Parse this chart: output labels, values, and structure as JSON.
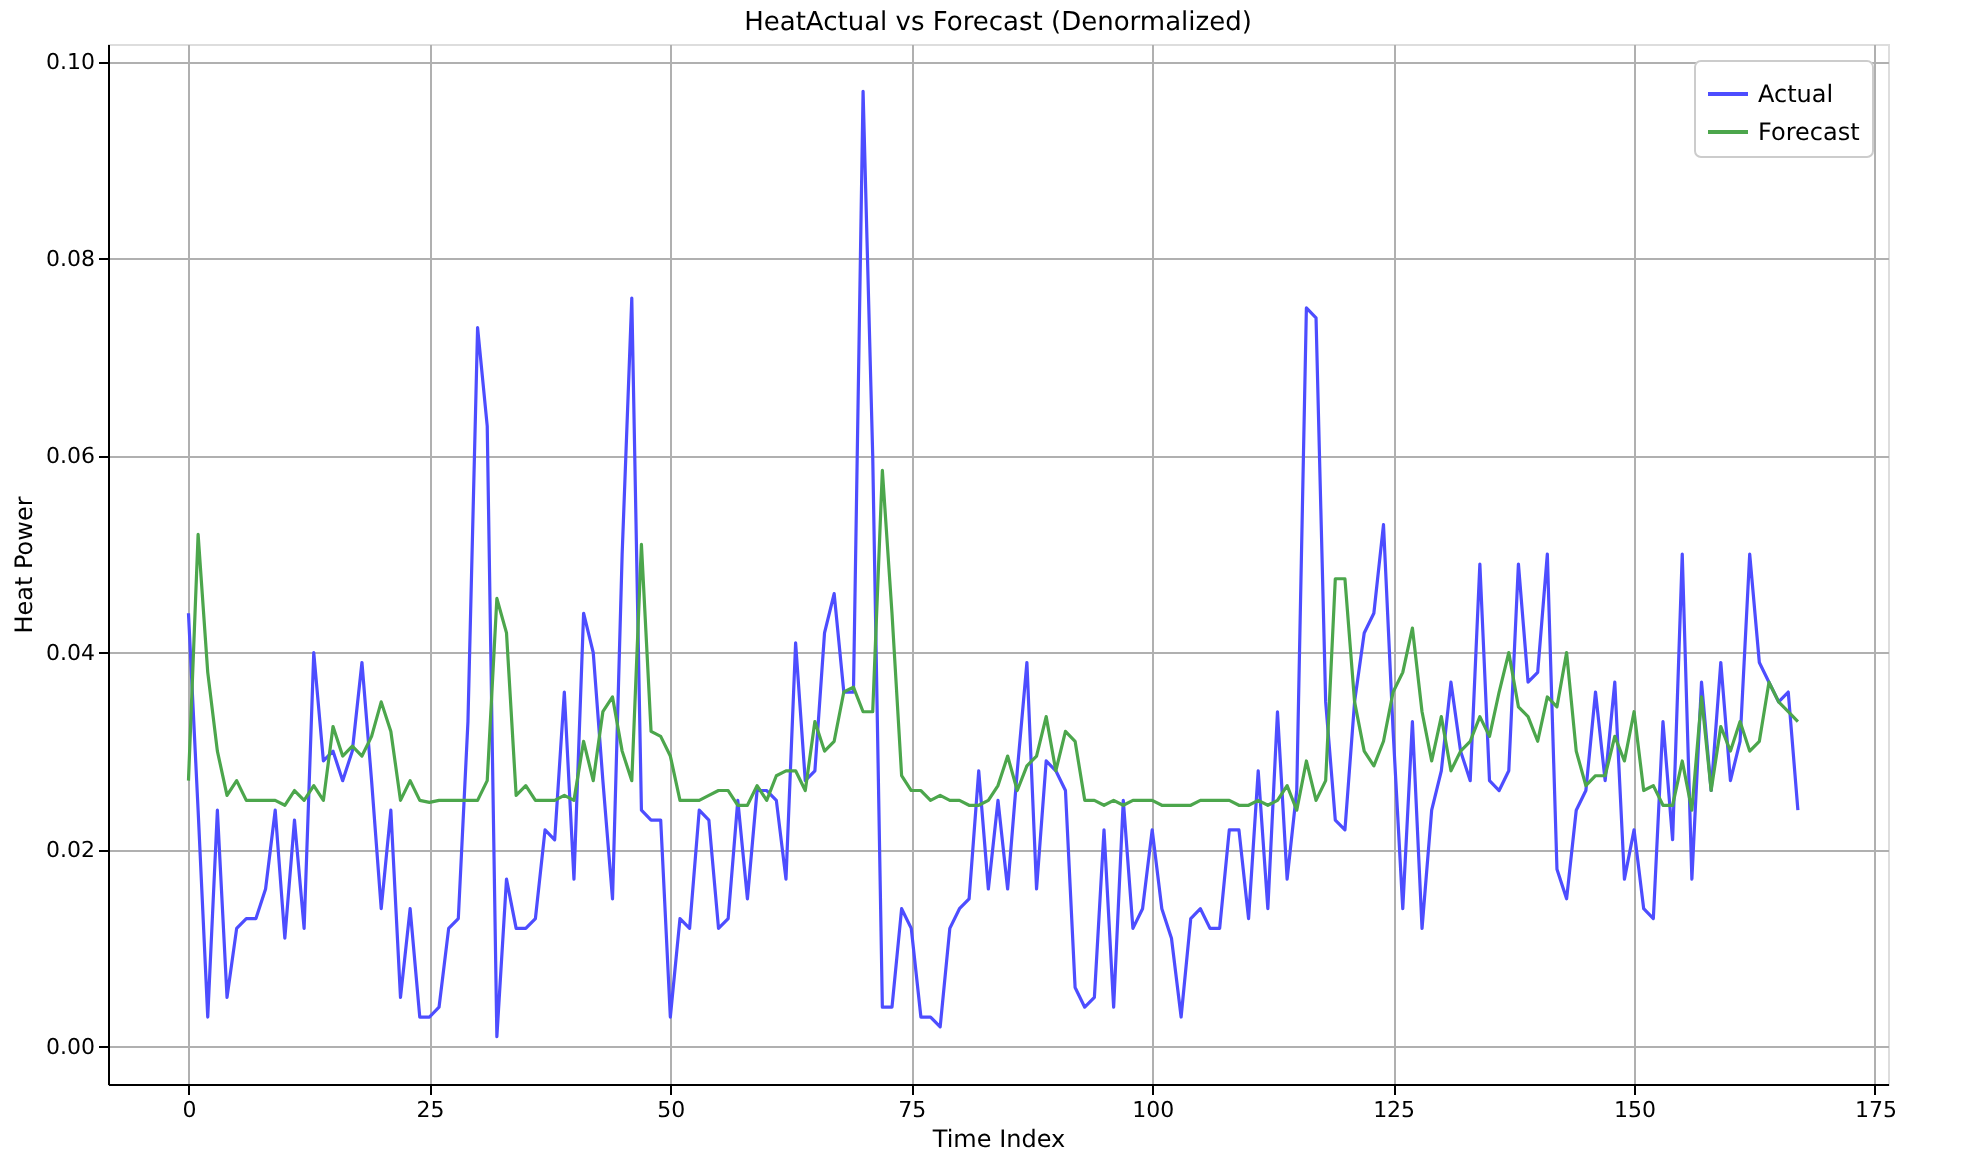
{
  "chart_data": {
    "type": "line",
    "title": "HeatActual vs Forecast (Denormalized)",
    "xlabel": "Time Index",
    "ylabel": "Heat Power",
    "x": [
      0,
      1,
      2,
      3,
      4,
      5,
      6,
      7,
      8,
      9,
      10,
      11,
      12,
      13,
      14,
      15,
      16,
      17,
      18,
      19,
      20,
      21,
      22,
      23,
      24,
      25,
      26,
      27,
      28,
      29,
      30,
      31,
      32,
      33,
      34,
      35,
      36,
      37,
      38,
      39,
      40,
      41,
      42,
      43,
      44,
      45,
      46,
      47,
      48,
      49,
      50,
      51,
      52,
      53,
      54,
      55,
      56,
      57,
      58,
      59,
      60,
      61,
      62,
      63,
      64,
      65,
      66,
      67,
      68,
      69,
      70,
      71,
      72,
      73,
      74,
      75,
      76,
      77,
      78,
      79,
      80,
      81,
      82,
      83,
      84,
      85,
      86,
      87,
      88,
      89,
      90,
      91,
      92,
      93,
      94,
      95,
      96,
      97,
      98,
      99,
      100,
      101,
      102,
      103,
      104,
      105,
      106,
      107,
      108,
      109,
      110,
      111,
      112,
      113,
      114,
      115,
      116,
      117,
      118,
      119,
      120,
      121,
      122,
      123,
      124,
      125,
      126,
      127,
      128,
      129,
      130,
      131,
      132,
      133,
      134,
      135,
      136,
      137,
      138,
      139,
      140,
      141,
      142,
      143,
      144,
      145,
      146,
      147,
      148,
      149,
      150,
      151,
      152,
      153,
      154,
      155,
      156,
      157,
      158,
      159,
      160,
      161,
      162,
      163,
      164,
      165,
      166,
      167
    ],
    "series": [
      {
        "name": "Actual",
        "color": "#4d4dff",
        "values": [
          0.044,
          0.024,
          0.003,
          0.024,
          0.005,
          0.012,
          0.013,
          0.013,
          0.016,
          0.024,
          0.011,
          0.023,
          0.012,
          0.04,
          0.029,
          0.03,
          0.027,
          0.03,
          0.039,
          0.027,
          0.014,
          0.024,
          0.005,
          0.014,
          0.003,
          0.003,
          0.004,
          0.012,
          0.013,
          0.033,
          0.073,
          0.063,
          0.001,
          0.017,
          0.012,
          0.012,
          0.013,
          0.022,
          0.021,
          0.036,
          0.017,
          0.044,
          0.04,
          0.027,
          0.015,
          0.05,
          0.076,
          0.024,
          0.023,
          0.023,
          0.003,
          0.013,
          0.012,
          0.024,
          0.023,
          0.012,
          0.013,
          0.025,
          0.015,
          0.026,
          0.026,
          0.025,
          0.017,
          0.041,
          0.027,
          0.028,
          0.042,
          0.046,
          0.036,
          0.036,
          0.097,
          0.06,
          0.004,
          0.004,
          0.014,
          0.012,
          0.003,
          0.003,
          0.002,
          0.012,
          0.014,
          0.015,
          0.028,
          0.016,
          0.025,
          0.016,
          0.028,
          0.039,
          0.016,
          0.029,
          0.028,
          0.026,
          0.006,
          0.004,
          0.005,
          0.022,
          0.004,
          0.025,
          0.012,
          0.014,
          0.022,
          0.014,
          0.011,
          0.003,
          0.013,
          0.014,
          0.012,
          0.012,
          0.022,
          0.022,
          0.013,
          0.028,
          0.014,
          0.034,
          0.017,
          0.026,
          0.075,
          0.074,
          0.035,
          0.023,
          0.022,
          0.035,
          0.042,
          0.044,
          0.053,
          0.032,
          0.014,
          0.033,
          0.012,
          0.024,
          0.028,
          0.037,
          0.03,
          0.027,
          0.049,
          0.027,
          0.026,
          0.028,
          0.049,
          0.037,
          0.038,
          0.05,
          0.018,
          0.015,
          0.024,
          0.026,
          0.036,
          0.027,
          0.037,
          0.017,
          0.022,
          0.014,
          0.013,
          0.033,
          0.021,
          0.05,
          0.017,
          0.037,
          0.026,
          0.039,
          0.027,
          0.031,
          0.05,
          0.039,
          0.037,
          0.035,
          0.036,
          0.024
        ]
      },
      {
        "name": "Forecast",
        "color": "#4ca64c",
        "values": [
          0.027,
          0.052,
          0.038,
          0.03,
          0.0255,
          0.027,
          0.025,
          0.025,
          0.025,
          0.025,
          0.0245,
          0.026,
          0.025,
          0.0265,
          0.025,
          0.0325,
          0.0295,
          0.0305,
          0.0295,
          0.0315,
          0.035,
          0.032,
          0.025,
          0.027,
          0.025,
          0.0248,
          0.025,
          0.025,
          0.025,
          0.025,
          0.025,
          0.027,
          0.0455,
          0.042,
          0.0255,
          0.0265,
          0.025,
          0.025,
          0.025,
          0.0255,
          0.025,
          0.031,
          0.027,
          0.034,
          0.0355,
          0.03,
          0.027,
          0.051,
          0.032,
          0.0315,
          0.0295,
          0.025,
          0.025,
          0.025,
          0.0255,
          0.026,
          0.026,
          0.0245,
          0.0245,
          0.0265,
          0.025,
          0.0275,
          0.028,
          0.028,
          0.026,
          0.033,
          0.03,
          0.031,
          0.036,
          0.0365,
          0.034,
          0.034,
          0.0585,
          0.044,
          0.0275,
          0.026,
          0.026,
          0.025,
          0.0255,
          0.025,
          0.025,
          0.0245,
          0.0245,
          0.025,
          0.0265,
          0.0295,
          0.026,
          0.0285,
          0.0295,
          0.0335,
          0.028,
          0.032,
          0.031,
          0.025,
          0.025,
          0.0245,
          0.025,
          0.0245,
          0.025,
          0.025,
          0.025,
          0.0245,
          0.0245,
          0.0245,
          0.0245,
          0.025,
          0.025,
          0.025,
          0.025,
          0.0245,
          0.0245,
          0.025,
          0.0245,
          0.025,
          0.0265,
          0.024,
          0.029,
          0.025,
          0.027,
          0.0475,
          0.0475,
          0.035,
          0.03,
          0.0285,
          0.031,
          0.036,
          0.038,
          0.0425,
          0.034,
          0.029,
          0.0335,
          0.028,
          0.03,
          0.031,
          0.0335,
          0.0315,
          0.036,
          0.04,
          0.0345,
          0.0335,
          0.031,
          0.0355,
          0.0345,
          0.04,
          0.03,
          0.0265,
          0.0275,
          0.0275,
          0.0315,
          0.029,
          0.034,
          0.026,
          0.0265,
          0.0245,
          0.0245,
          0.029,
          0.024,
          0.0355,
          0.026,
          0.0325,
          0.03,
          0.033,
          0.03,
          0.031,
          0.037,
          0.035,
          0.034,
          0.033
        ]
      }
    ],
    "xlim": [
      -8.35,
      176.35
    ],
    "xticks": [
      0,
      25,
      50,
      75,
      100,
      125,
      150,
      175
    ],
    "ylim": [
      -0.0038,
      0.1018
    ],
    "yticks": [
      {
        "value": 0,
        "label": "0.00"
      },
      {
        "value": 0.02,
        "label": "0.02"
      },
      {
        "value": 0.04,
        "label": "0.04"
      },
      {
        "value": 0.06,
        "label": "0.06"
      },
      {
        "value": 0.08,
        "label": "0.08"
      },
      {
        "value": 0.1,
        "label": "0.10"
      }
    ],
    "grid": true,
    "legend": "top right",
    "line_style": "solid",
    "marker": "none"
  }
}
